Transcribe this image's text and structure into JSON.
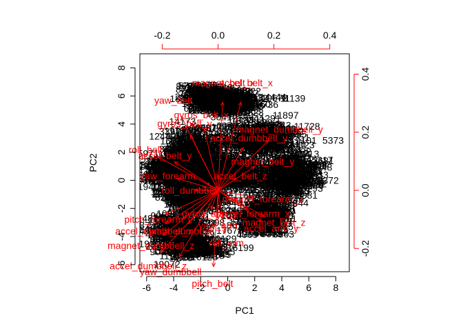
{
  "chart_data": {
    "type": "scatter",
    "subtype": "pca-biplot",
    "title": "",
    "xlabel": "PC1",
    "ylabel": "PC2",
    "xlim": [
      -6.5,
      9
    ],
    "ylim": [
      -6.5,
      9
    ],
    "x_ticks": [
      -6,
      -4,
      -2,
      0,
      2,
      4,
      6,
      8
    ],
    "y_ticks": [
      -6,
      -4,
      -2,
      0,
      2,
      4,
      6,
      8
    ],
    "x_tick_labels": [
      "-6",
      "-4",
      "-2",
      "0",
      "2",
      "4",
      "6",
      "8"
    ],
    "y_tick_labels": [
      "-6",
      "-4",
      "-2",
      "0",
      "2",
      "4",
      "6",
      "8"
    ],
    "loading_xlim": [
      -0.28,
      0.47
    ],
    "loading_ylim": [
      -0.28,
      0.47
    ],
    "loading_x_ticks": [
      -0.2,
      0.0,
      0.2,
      0.4
    ],
    "loading_y_ticks": [
      -0.2,
      0.0,
      0.2,
      0.4
    ],
    "loading_x_tick_labels": [
      "-0.2",
      "0.0",
      "0.2",
      "0.4"
    ],
    "loading_y_tick_labels": [
      "-0.2",
      "0.0",
      "0.2",
      "0.4"
    ],
    "grid": false,
    "observation_clusters": [
      {
        "cx": -0.9,
        "cy": 6.0,
        "sx": 2.0,
        "sy": 0.6,
        "n": 170
      },
      {
        "cx": 0.2,
        "cy": 5.4,
        "sx": 1.8,
        "sy": 0.7,
        "n": 130
      },
      {
        "cx": -2.5,
        "cy": 2.2,
        "sx": 2.0,
        "sy": 1.2,
        "n": 190
      },
      {
        "cx": 2.5,
        "cy": 3.0,
        "sx": 2.2,
        "sy": 1.2,
        "n": 210
      },
      {
        "cx": -4.2,
        "cy": 0.6,
        "sx": 1.5,
        "sy": 1.2,
        "n": 150
      },
      {
        "cx": 0.3,
        "cy": 0.5,
        "sx": 2.6,
        "sy": 1.0,
        "n": 240
      },
      {
        "cx": 4.6,
        "cy": 0.2,
        "sx": 1.8,
        "sy": 1.4,
        "n": 200
      },
      {
        "cx": -2.5,
        "cy": -1.3,
        "sx": 2.0,
        "sy": 0.8,
        "n": 160
      },
      {
        "cx": 2.6,
        "cy": -2.6,
        "sx": 1.6,
        "sy": 1.3,
        "n": 180
      },
      {
        "cx": -3.6,
        "cy": -3.6,
        "sx": 1.8,
        "sy": 1.0,
        "n": 170
      },
      {
        "cx": -2.6,
        "cy": -4.8,
        "sx": 1.8,
        "sy": 0.6,
        "n": 110
      }
    ],
    "visible_observation_labels": [
      {
        "label": "16190",
        "x": -2.3,
        "y": 6.25
      },
      {
        "label": "5373",
        "x": 7.8,
        "y": 2.85
      },
      {
        "label": "19072",
        "x": -4.5,
        "y": -5.95
      }
    ],
    "loadings": [
      {
        "name": "magnet_belt_x",
        "x": 0.02,
        "y": 0.37
      },
      {
        "name": "accel_belt_x",
        "x": 0.1,
        "y": 0.37
      },
      {
        "name": "yaw_belt",
        "x": -0.16,
        "y": 0.31
      },
      {
        "name": "gyros_belt_x",
        "x": -0.06,
        "y": 0.26
      },
      {
        "name": "gyros_belt_y",
        "x": -0.12,
        "y": 0.23
      },
      {
        "name": "magnet_dumbbell_y",
        "x": 0.22,
        "y": 0.21
      },
      {
        "name": "accel_dumbbell_y",
        "x": 0.11,
        "y": 0.18
      },
      {
        "name": "magnet_belt_y",
        "x": 0.16,
        "y": 0.1
      },
      {
        "name": "roll_belt",
        "x": -0.26,
        "y": 0.14
      },
      {
        "name": "accel_belt_y",
        "x": -0.19,
        "y": 0.12
      },
      {
        "name": "accel_belt_z",
        "x": 0.08,
        "y": 0.05
      },
      {
        "name": "yaw_forearm",
        "x": -0.18,
        "y": 0.05
      },
      {
        "name": "roll_dumbbell",
        "x": -0.1,
        "y": 0.0
      },
      {
        "name": "magnet_forearm_z",
        "x": 0.16,
        "y": -0.03
      },
      {
        "name": "accel_forearm_x",
        "x": 0.13,
        "y": -0.08
      },
      {
        "name": "gyros_arm_y",
        "x": -0.03,
        "y": -0.08
      },
      {
        "name": "magnet_belt_z",
        "x": 0.2,
        "y": -0.11
      },
      {
        "name": "accel_arm_y",
        "x": 0.19,
        "y": -0.13
      },
      {
        "name": "pitch_forearm",
        "x": -0.23,
        "y": -0.1
      },
      {
        "name": "yaw_arm",
        "x": 0.0,
        "y": -0.12
      },
      {
        "name": "accel_dumbbell_x",
        "x": -0.23,
        "y": -0.14
      },
      {
        "name": "pitch_dumbbell",
        "x": -0.13,
        "y": -0.14
      },
      {
        "name": "magnet_dumbbell_z",
        "x": -0.24,
        "y": -0.19
      },
      {
        "name": "roll_arm",
        "x": 0.03,
        "y": -0.18
      },
      {
        "name": "accel_dumbbell_z",
        "x": -0.25,
        "y": -0.26
      },
      {
        "name": "yaw_dumbbell",
        "x": -0.17,
        "y": -0.28
      },
      {
        "name": "pitch_belt",
        "x": -0.02,
        "y": -0.32
      }
    ],
    "loading_label_color": "#ff0000",
    "observation_label_color": "#000000"
  }
}
